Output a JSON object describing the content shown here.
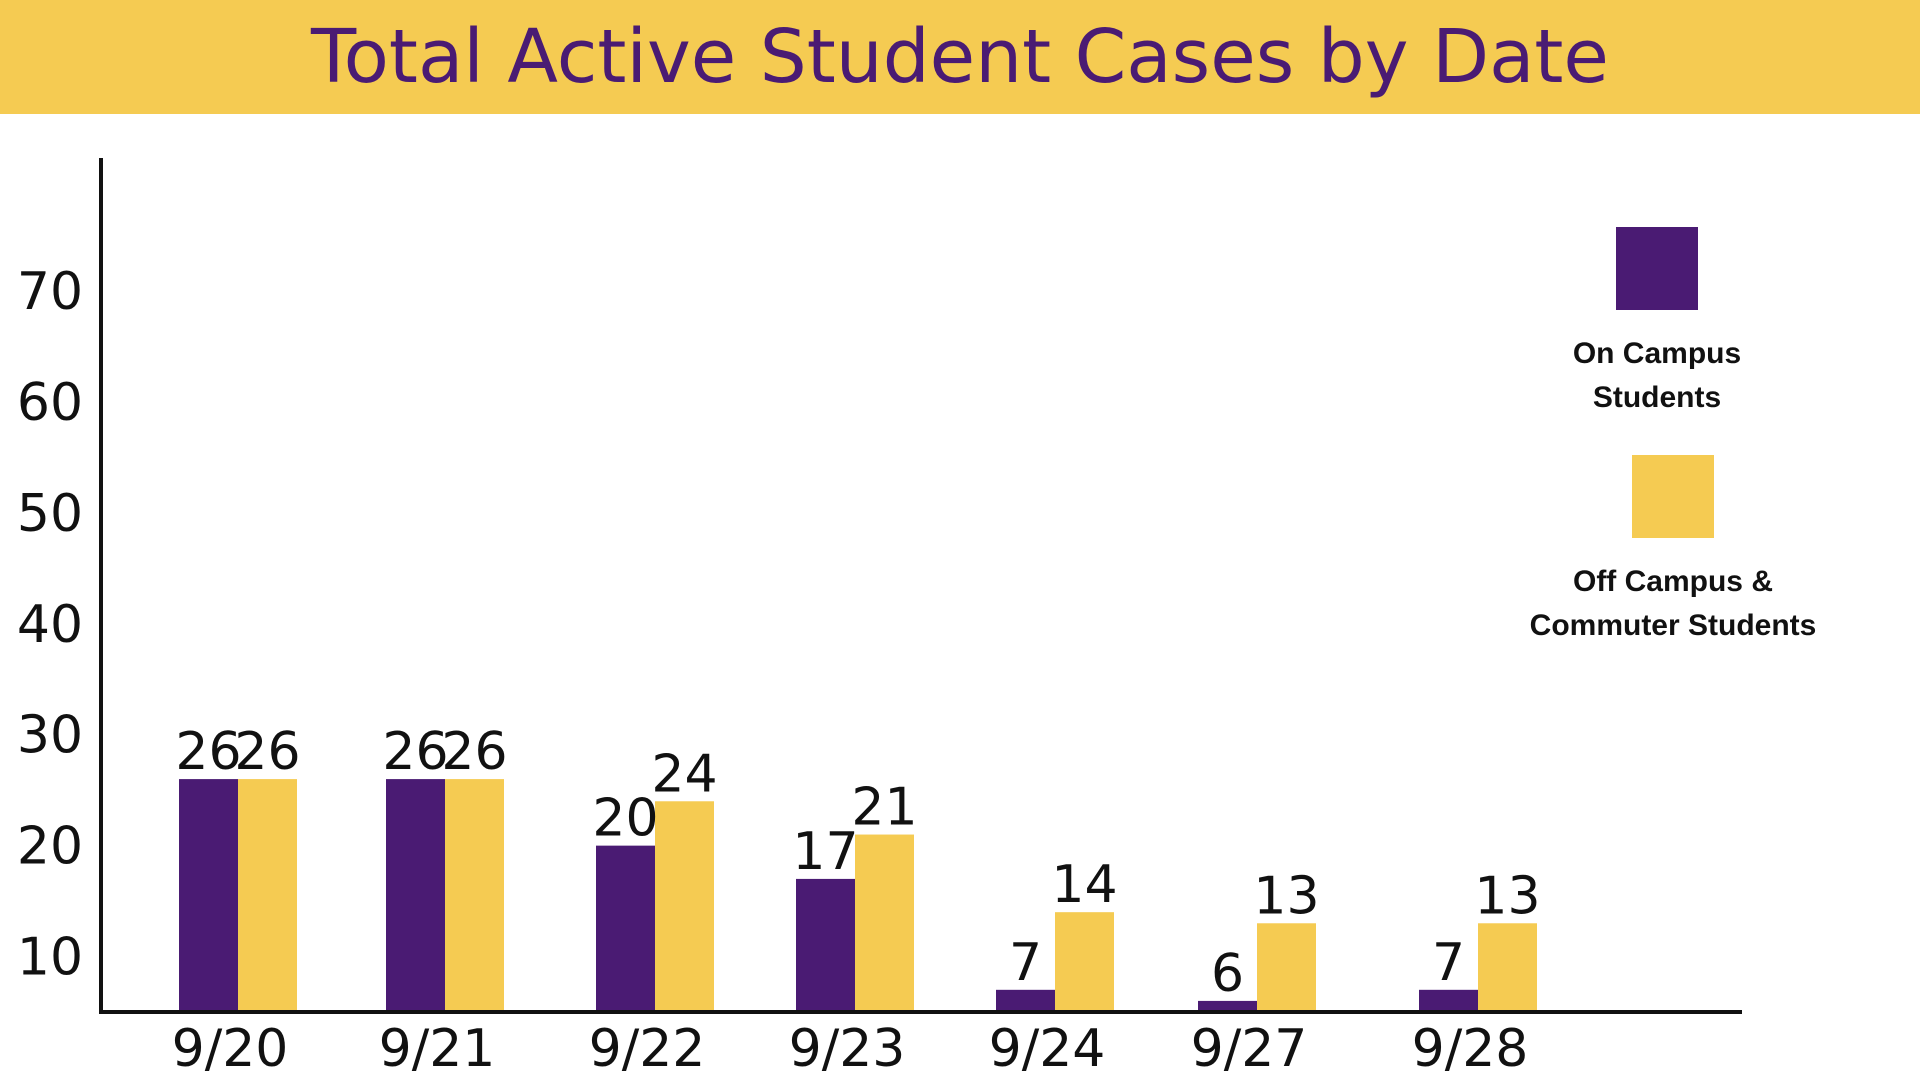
{
  "title": "Total Active Student Cases by Date",
  "colors": {
    "title_bar": "#F5CB52",
    "title_text": "#4A1B73",
    "on_campus": "#4A1B73",
    "off_campus": "#F5CB52",
    "axis": "#111111"
  },
  "legend": {
    "on_campus": "On Campus\nStudents",
    "off_campus": "Off Campus &\nCommuter Students"
  },
  "chart_data": {
    "type": "bar",
    "title": "Total Active Student Cases by Date",
    "xlabel": "",
    "ylabel": "",
    "categories": [
      "9/20",
      "9/21",
      "9/22",
      "9/23",
      "9/24",
      "9/27",
      "9/28"
    ],
    "y_ticks": [
      10,
      20,
      30,
      40,
      50,
      60,
      70
    ],
    "ylim": [
      5,
      82
    ],
    "grid": false,
    "legend_position": "right",
    "series": [
      {
        "name": "On Campus Students",
        "values": [
          26,
          26,
          20,
          17,
          7,
          6,
          7
        ]
      },
      {
        "name": "Off Campus & Commuter Students",
        "values": [
          26,
          26,
          24,
          21,
          14,
          13,
          13
        ]
      }
    ]
  }
}
